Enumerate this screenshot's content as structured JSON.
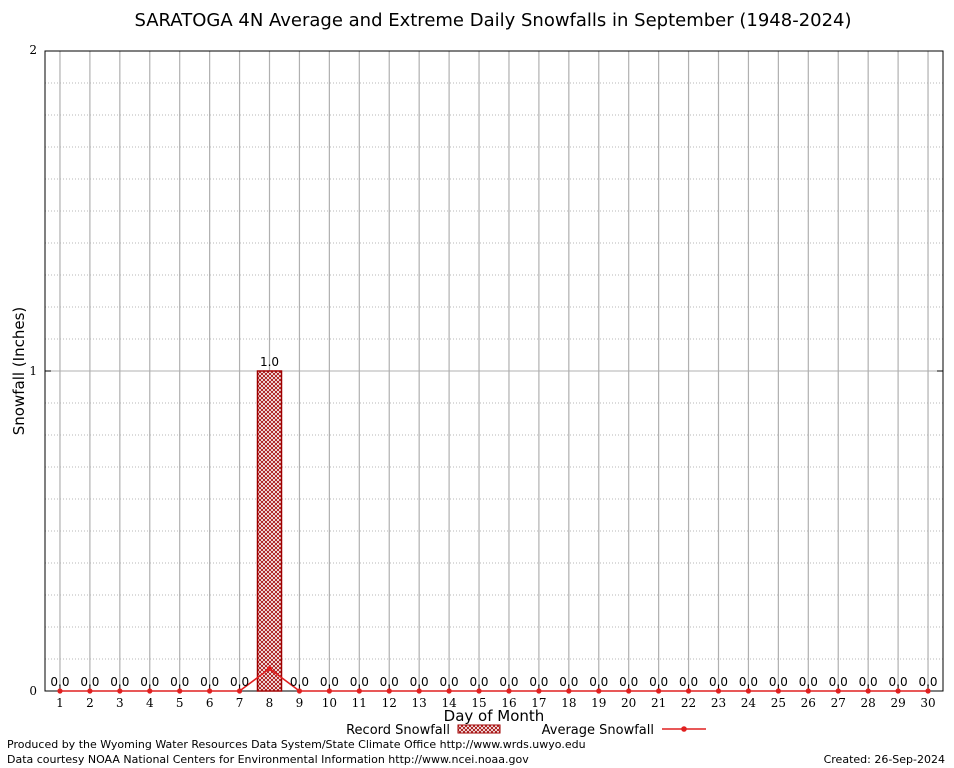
{
  "colors": {
    "record": "#a00000",
    "average": "#e02020",
    "grid_major": "#b0b0b0",
    "grid_minor": "#a0a0a0",
    "axis": "#000000"
  },
  "footer": {
    "credit_line1": "Produced by the Wyoming Water Resources Data System/State Climate Office http://www.wrds.uwyo.edu",
    "credit_line2": "Data courtesy NOAA National Centers for Environmental Information http://www.ncei.noaa.gov",
    "created": "Created:  26-Sep-2024"
  },
  "chart_data": {
    "type": "bar",
    "title": "SARATOGA 4N Average and Extreme Daily Snowfalls in September (1948-2024)",
    "xlabel": "Day of Month",
    "ylabel": "Snowfall (Inches)",
    "ylim": [
      0,
      2
    ],
    "yticks": [
      0,
      1,
      2
    ],
    "grid": true,
    "legend_position": "bottom",
    "categories": [
      "1",
      "2",
      "3",
      "4",
      "5",
      "6",
      "7",
      "8",
      "9",
      "10",
      "11",
      "12",
      "13",
      "14",
      "15",
      "16",
      "17",
      "18",
      "19",
      "20",
      "21",
      "22",
      "23",
      "24",
      "25",
      "26",
      "27",
      "28",
      "29",
      "30"
    ],
    "series": [
      {
        "name": "Record Snowfall",
        "type": "bar",
        "values": [
          0,
          0,
          0,
          0,
          0,
          0,
          0,
          1.0,
          0,
          0,
          0,
          0,
          0,
          0,
          0,
          0,
          0,
          0,
          0,
          0,
          0,
          0,
          0,
          0,
          0,
          0,
          0,
          0,
          0,
          0
        ],
        "labels": [
          "0.0",
          "0.0",
          "0.0",
          "0.0",
          "0.0",
          "0.0",
          "0.0",
          "1.0",
          "0.0",
          "0.0",
          "0.0",
          "0.0",
          "0.0",
          "0.0",
          "0.0",
          "0.0",
          "0.0",
          "0.0",
          "0.0",
          "0.0",
          "0.0",
          "0.0",
          "0.0",
          "0.0",
          "0.0",
          "0.0",
          "0.0",
          "0.0",
          "0.0",
          "0.0"
        ]
      },
      {
        "name": "Average Snowfall",
        "type": "line",
        "values": [
          0,
          0,
          0,
          0,
          0,
          0,
          0,
          0.07,
          0,
          0,
          0,
          0,
          0,
          0,
          0,
          0,
          0,
          0,
          0,
          0,
          0,
          0,
          0,
          0,
          0,
          0,
          0,
          0,
          0,
          0
        ]
      }
    ]
  }
}
